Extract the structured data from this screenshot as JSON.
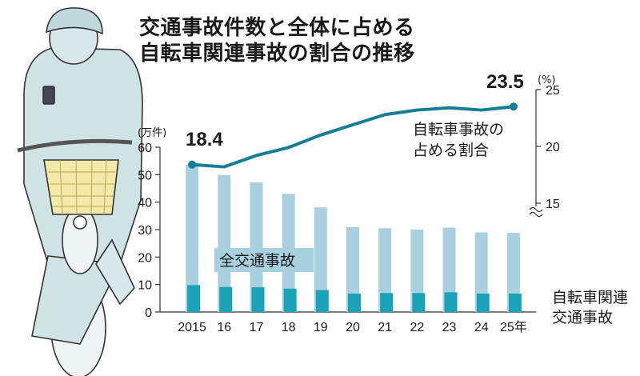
{
  "title": {
    "line1": "交通事故件数と全体に占める",
    "line2": "自転車関連事故の割合の推移"
  },
  "colors": {
    "total_bar": "#a8d0df",
    "bike_bar": "#1aa3b8",
    "share_line": "#167d96",
    "axis": "#333333"
  },
  "illustration": "cyclist-using-smartphone",
  "chart_data": {
    "type": "bar+line",
    "categories": [
      "2015",
      "16",
      "17",
      "18",
      "19",
      "20",
      "21",
      "22",
      "23",
      "24",
      "25年"
    ],
    "left_axis": {
      "unit": "(万件)",
      "ylim": [
        0,
        60
      ],
      "ticks": [
        0,
        10,
        20,
        30,
        40,
        50,
        60
      ]
    },
    "right_axis": {
      "unit": "(%)",
      "ylim": [
        15,
        25
      ],
      "ticks": [
        15,
        20,
        25
      ],
      "axis_break": true
    },
    "series": [
      {
        "name": "全交通事故",
        "type": "bar",
        "axis": "left",
        "values": [
          53.6,
          49.9,
          47.2,
          43.0,
          38.1,
          30.9,
          30.5,
          30.0,
          30.7,
          29.0,
          28.8
        ]
      },
      {
        "name": "自転車関連交通事故",
        "type": "bar",
        "axis": "left",
        "values": [
          9.8,
          9.1,
          9.0,
          8.5,
          8.0,
          6.7,
          6.9,
          6.9,
          7.2,
          6.7,
          6.7
        ]
      },
      {
        "name": "自転車事故の占める割合",
        "type": "line",
        "axis": "right",
        "values": [
          18.4,
          18.2,
          19.2,
          19.9,
          21.0,
          21.9,
          22.8,
          23.2,
          23.4,
          23.2,
          23.5
        ]
      }
    ],
    "annotations": {
      "first_value": "18.4",
      "last_value": "23.5"
    },
    "labels": {
      "total": "全交通事故",
      "share_line1": "自転車事故の",
      "share_line2": "占める割合",
      "bike_line1": "自転車関連",
      "bike_line2": "交通事故"
    },
    "grid": false
  }
}
